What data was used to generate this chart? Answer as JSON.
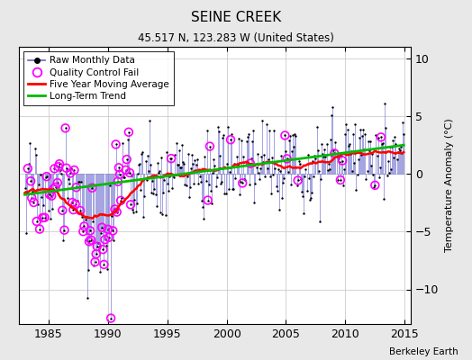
{
  "title": "SEINE CREEK",
  "subtitle": "45.517 N, 123.283 W (United States)",
  "ylabel": "Temperature Anomaly (°C)",
  "credit": "Berkeley Earth",
  "xlim": [
    1982.5,
    2015.5
  ],
  "ylim": [
    -13,
    11
  ],
  "yticks": [
    -10,
    -5,
    0,
    5,
    10
  ],
  "xticks": [
    1985,
    1990,
    1995,
    2000,
    2005,
    2010,
    2015
  ],
  "bg_color": "#e8e8e8",
  "plot_bg": "#ffffff",
  "raw_color": "#6666cc",
  "qc_color": "#ff00ff",
  "moving_avg_color": "#ff0000",
  "trend_color": "#00bb00",
  "marker_color": "#000000",
  "grid_color": "#cccccc"
}
